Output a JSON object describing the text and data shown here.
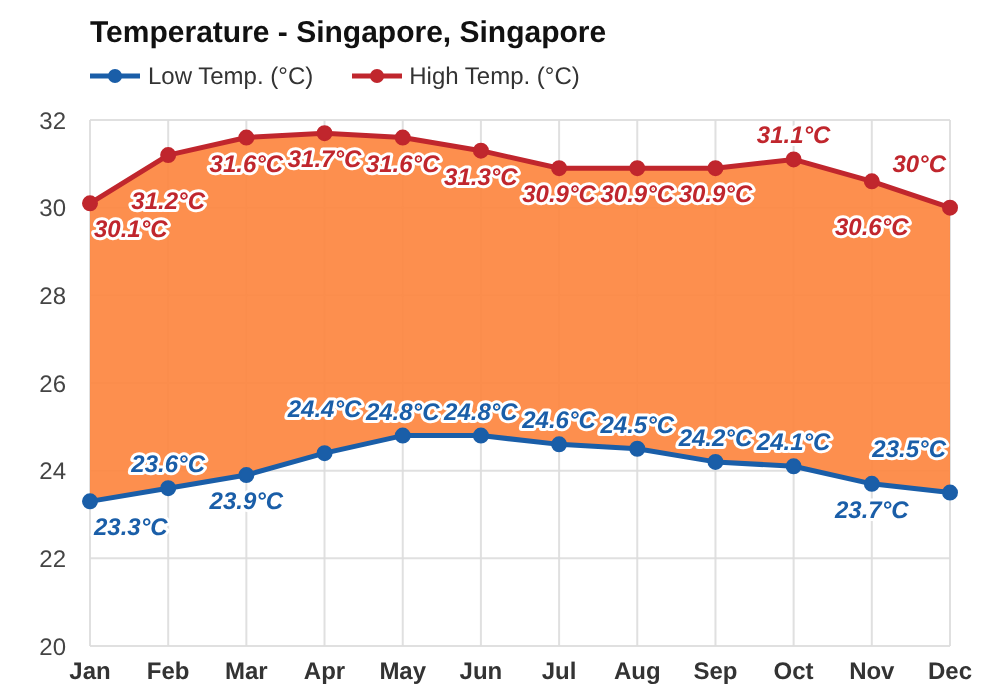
{
  "chart_data": {
    "type": "line",
    "title": "Temperature - Singapore, Singapore",
    "categories": [
      "Jan",
      "Feb",
      "Mar",
      "Apr",
      "May",
      "Jun",
      "Jul",
      "Aug",
      "Sep",
      "Oct",
      "Nov",
      "Dec"
    ],
    "series": [
      {
        "name": "Low Temp. (°C)",
        "color": "#1a5ea8",
        "values": [
          23.3,
          23.6,
          23.9,
          24.4,
          24.8,
          24.8,
          24.6,
          24.5,
          24.2,
          24.1,
          23.7,
          23.5
        ],
        "value_labels": [
          "23.3°C",
          "23.6°C",
          "23.9°C",
          "24.4°C",
          "24.8°C",
          "24.8°C",
          "24.6°C",
          "24.5°C",
          "24.2°C",
          "24.1°C",
          "23.7°C",
          "23.5°C"
        ]
      },
      {
        "name": "High Temp. (°C)",
        "color": "#c0262d",
        "values": [
          30.1,
          31.2,
          31.6,
          31.7,
          31.6,
          31.3,
          30.9,
          30.9,
          30.9,
          31.1,
          30.6,
          30
        ],
        "value_labels": [
          "30.1°C",
          "31.2°C",
          "31.6°C",
          "31.7°C",
          "31.6°C",
          "31.3°C",
          "30.9°C",
          "30.9°C",
          "30.9°C",
          "31.1°C",
          "30.6°C",
          "30°C"
        ],
        "lower": [
          23.3,
          23.6,
          23.9,
          24.4,
          24.8,
          24.8,
          24.6,
          24.5,
          24.2,
          24.1,
          23.7,
          23.5
        ],
        "upper": [
          30.1,
          31.2,
          31.6,
          31.7,
          31.6,
          31.3,
          30.9,
          30.9,
          30.9,
          31.1,
          30.6,
          30
        ]
      }
    ],
    "ylim": [
      20,
      32
    ],
    "yticks": [
      20,
      22,
      24,
      26,
      28,
      30,
      32
    ],
    "grid": true,
    "legend": "top left",
    "marker": "circle",
    "line_style": "solid"
  }
}
